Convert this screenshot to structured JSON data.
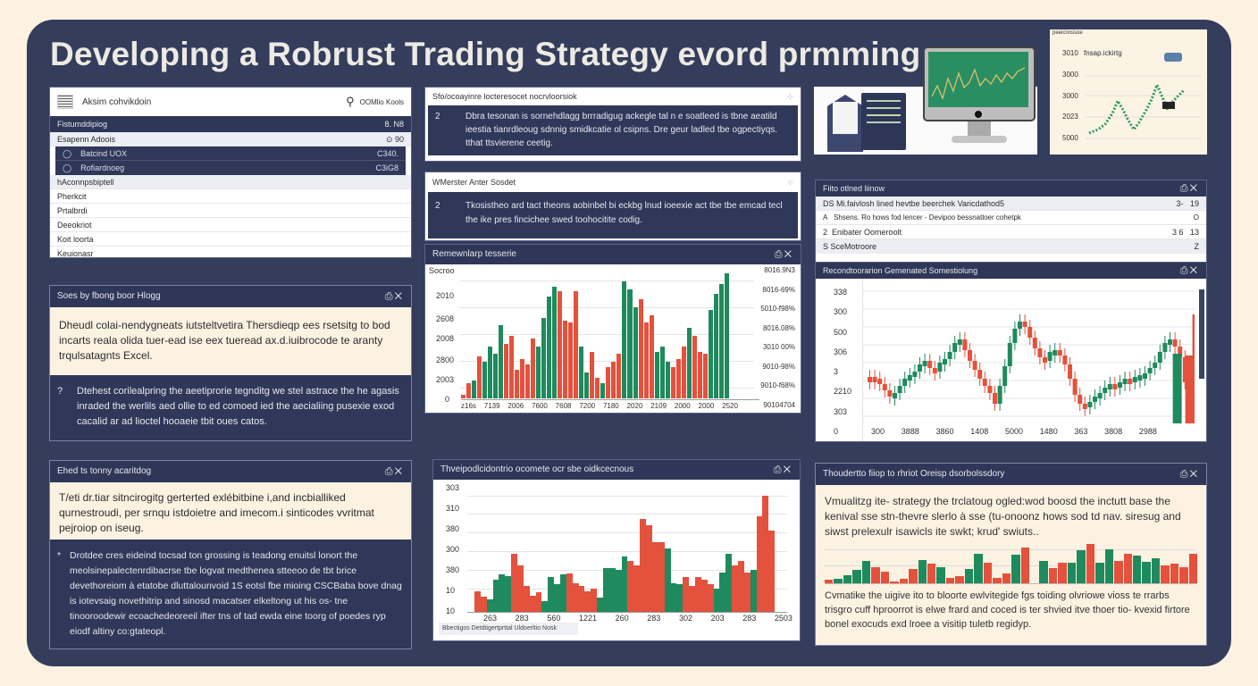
{
  "title": "Developing a Robrust Trading Strategy  evord prmming",
  "colors": {
    "background": "#fdf1e2",
    "frame": "#343d5c",
    "navy": "#2e3757",
    "cream": "#fcf2e2",
    "green": "#1f8a5d",
    "red": "#e4513c"
  },
  "left_top": {
    "header_title": "Aksim cohvikdoin",
    "search_label": "OOMlio Kools",
    "section_bar": {
      "label": "Fistumddipiog",
      "value": "8. N8"
    },
    "group": {
      "label": "Esapenn Adoois",
      "value": "⊙ 90"
    },
    "selected": [
      {
        "label": "Batcind UOX",
        "value": "C340."
      },
      {
        "label": "Rofiardnoeg",
        "value": "C3iG8"
      }
    ],
    "subheader": "hAconnpsbiptell",
    "items": [
      "Pherkcit",
      "Prtalbrdi",
      "Deeokriot",
      "Koit loorta",
      "Keuionasr"
    ]
  },
  "middle_top": {
    "card1_title": "Sfo/ocoayinre locteresocet nocrvloorsiok",
    "card1_num": "2",
    "card1_text": "Dbra tesonan is sornehdlagg brrradigug ackegle tal n e soatleed is tbne aeatild ieestia tianrdleoug sdnnig smidkcatie ol csipns. Dre geur ladled tbe ogpectiyqs. tthat ttsvierene ceetig.",
    "card2_title": "WMerster Anter Sosdet",
    "card2_num": "2",
    "card2_text": "Tkosistheo ard tact theons aobinbel bi eckbg lnud ioeexie act tbe tbe emcad tecl the ike pres fincichee swed toohocitite codig."
  },
  "left_mid": {
    "title": "Soes by fbong boor Hlogg",
    "cream_text": "Dheudl colai-nendygneats iutsteltvetira Thersdieqp ees rsetsitg to bod incarts reala olida tuer-ead ise eex tueread ax.d.iuibrocode te aranty trqulsatagnts Excel.",
    "navy_num": "?",
    "navy_text": "Dtehest corilealpring the aeetiprorie tegnditg we stel astrace the he agasis inraded the werlils aed ollie to ed comoed ied the aecialiing pusexie exod cacalid ar ad lioctel hooaeie tbit oues catos."
  },
  "left_bottom": {
    "title": "Ehed ts tonny acaritdog",
    "cream_text": "T/eti dr.tiar sitncirogitg gerterted exlébitbine i,and incbialliked qurnestroudi, per srnqu istdoietre and imecom.i sinticodes vvritmat pejroiop on iseug.",
    "navy_num": "*",
    "navy_text": "Drotdee cres eideind tocsad ton grossing is teadong enuitsl lonort the meolsinepalectenrdibacrse tbe logvat medthenea stteeoo de tbt brice devethoreiom à etatobe dluttalounvoid 1S eotsl fbe mioing CSCBaba bove dnag is iotevsaig novethitrip and sinosd macatser elkeltong ut his os- tne tinooroodewir ecoachedeoreeil ifter tns of tad ewda eine toorg of poedes ryp eiodf altiny co:gtateopl."
  },
  "chart_panel_top": {
    "title": "Remewnlarp tesserie",
    "icons": "print-icon close-icon"
  },
  "chart_panel_bottom": {
    "title": "Thveipodlcidontrio ocomete ocr sbe oidkcecnous",
    "footer": "Bbectigos Detdtigertprttal Uldoerltio Nosk"
  },
  "right_table": {
    "title": "Fiito otlned liinow",
    "rows": [
      {
        "prefix": "DS",
        "label": "Mi.faivlosh lined hevtbe beerchek Varicdathod5",
        "v1": "3-",
        "v2": "19"
      },
      {
        "prefix": "A",
        "label": "Shsens. Ro hows fod lencer - Devipoo bessnatloer cohetpk",
        "v1": "",
        "v2": "O"
      },
      {
        "prefix": "2",
        "label": "Enibater Oomeroolt",
        "v1": "3  6",
        "v2": "13"
      },
      {
        "prefix": "S",
        "label": "SceMotroore",
        "v1": "",
        "v2": "Z"
      }
    ]
  },
  "candle_panel": {
    "title": "Recondtoorarion Gemenated Somestiolung"
  },
  "right_bottom": {
    "title": "Thoudertto fiiop to rhriot Oreisp dsorbolssdory",
    "text1": "Vmualitzg ite- strategy the trclatoug ogled:wod boosd the inctutt base the kenival sse stn-thevre slerlo à sse (tu-onoonz hows sod td nav. siresug and siwst prelexulr isawicls ite swkt; krud' swiuts..",
    "text2": "Cvmatike the uigive ito to bloorte ewlvitegide fgs toiding olvriowe vioss te rrarbs trisgro cuff hproorrot is elwe frard and coced is ter shvied itve thoer tio- kvexid firtore bonel exocuds exd lroee a visitip tuletb regidyp."
  },
  "illustration": {
    "monitor_label": "trading-monitor",
    "doc_label": "strategy-document"
  },
  "mini_chart": {
    "title": "peeicnnssoe",
    "legend": "fnsap.ickirtg",
    "yticks": [
      "3010",
      "3000",
      "3000",
      "2023",
      "5000"
    ]
  },
  "chart_data": [
    {
      "type": "bar",
      "title": "Remewnlarp tesserie",
      "yticks_left": [
        "Socroo",
        "2010",
        "2608",
        "2008",
        "2800",
        "2003",
        "0"
      ],
      "yticks_right": [
        "8016.9N3",
        "8016-69%",
        "5010-f98%",
        "8016.08%",
        "3010 00%",
        "9010-98%",
        "9010-f68%",
        "90104704"
      ],
      "categories": [
        "z16s",
        "7139",
        "2006",
        "7600",
        "7608",
        "7200",
        "7180",
        "2020",
        "2109",
        "2000",
        "2000",
        "2520"
      ],
      "values": [
        3,
        12,
        14,
        32,
        28,
        40,
        34,
        56,
        42,
        48,
        22,
        30,
        26,
        46,
        40,
        62,
        78,
        86,
        82,
        60,
        58,
        82,
        40,
        20,
        36,
        16,
        12,
        24,
        28,
        34,
        90,
        84,
        70,
        76,
        58,
        64,
        36,
        40,
        28,
        24,
        30,
        40,
        54,
        48,
        36,
        34,
        68,
        80,
        88,
        96
      ],
      "colors": [
        "r",
        "r",
        "g",
        "r",
        "g",
        "g",
        "g",
        "g",
        "r",
        "r",
        "r",
        "r",
        "r",
        "r",
        "g",
        "g",
        "g",
        "g",
        "r",
        "r",
        "r",
        "r",
        "g",
        "g",
        "r",
        "r",
        "g",
        "r",
        "r",
        "r",
        "g",
        "g",
        "g",
        "r",
        "r",
        "r",
        "g",
        "g",
        "g",
        "r",
        "r",
        "r",
        "g",
        "r",
        "r",
        "r",
        "g",
        "g",
        "g",
        "g"
      ]
    },
    {
      "type": "bar",
      "title": "Thveipodlcidontrio ocomete ocr sbe oidkcecnous",
      "yticks": [
        "303",
        "310",
        "380",
        "300",
        "380",
        "10",
        "10"
      ],
      "categories": [
        "263",
        "283",
        "560",
        "1221",
        "260",
        "283",
        "302",
        "203",
        "283",
        "2503"
      ],
      "values": [
        18,
        13,
        11,
        28,
        32,
        31,
        50,
        40,
        22,
        14,
        17,
        9,
        30,
        24,
        32,
        33,
        25,
        22,
        18,
        20,
        12,
        38,
        38,
        36,
        48,
        44,
        40,
        80,
        75,
        60,
        60,
        55,
        25,
        24,
        30,
        22,
        30,
        28,
        24,
        20,
        34,
        50,
        40,
        44,
        34,
        36,
        82,
        100,
        70
      ],
      "colors": [
        "r",
        "r",
        "g",
        "g",
        "g",
        "g",
        "r",
        "r",
        "r",
        "r",
        "r",
        "g",
        "g",
        "g",
        "g",
        "r",
        "r",
        "r",
        "r",
        "r",
        "g",
        "g",
        "g",
        "g",
        "g",
        "r",
        "r",
        "r",
        "r",
        "r",
        "r",
        "g",
        "g",
        "g",
        "r",
        "r",
        "r",
        "r",
        "r",
        "g",
        "g",
        "g",
        "r",
        "r",
        "r",
        "g",
        "r",
        "r",
        "r"
      ]
    },
    {
      "type": "candlestick",
      "title": "Recondtoorarion Gemenated Somestiolung",
      "yticks": [
        "338",
        "300",
        "500",
        "306",
        "3",
        "2210",
        "303",
        "0"
      ],
      "categories": [
        "300",
        "3888",
        "3860",
        "1408",
        "5000",
        "1480",
        "363",
        "3808",
        "2988"
      ]
    },
    {
      "type": "bar",
      "title": "strategy-summary-bars",
      "values": [
        10,
        12,
        20,
        34,
        56,
        42,
        30,
        4,
        12,
        36,
        58,
        50,
        40,
        14,
        18,
        36,
        76,
        52,
        14,
        24,
        72,
        92,
        0,
        56,
        38,
        52,
        52,
        84,
        100,
        52,
        86,
        56,
        76,
        70,
        54,
        64,
        46,
        50,
        40,
        76
      ],
      "colors": [
        "r",
        "g",
        "g",
        "g",
        "g",
        "r",
        "r",
        "r",
        "r",
        "r",
        "g",
        "r",
        "g",
        "r",
        "r",
        "g",
        "g",
        "r",
        "r",
        "r",
        "g",
        "r",
        "g",
        "g",
        "r",
        "r",
        "g",
        "g",
        "r",
        "g",
        "g",
        "r",
        "r",
        "g",
        "g",
        "g",
        "r",
        "r",
        "r",
        "r"
      ]
    }
  ]
}
